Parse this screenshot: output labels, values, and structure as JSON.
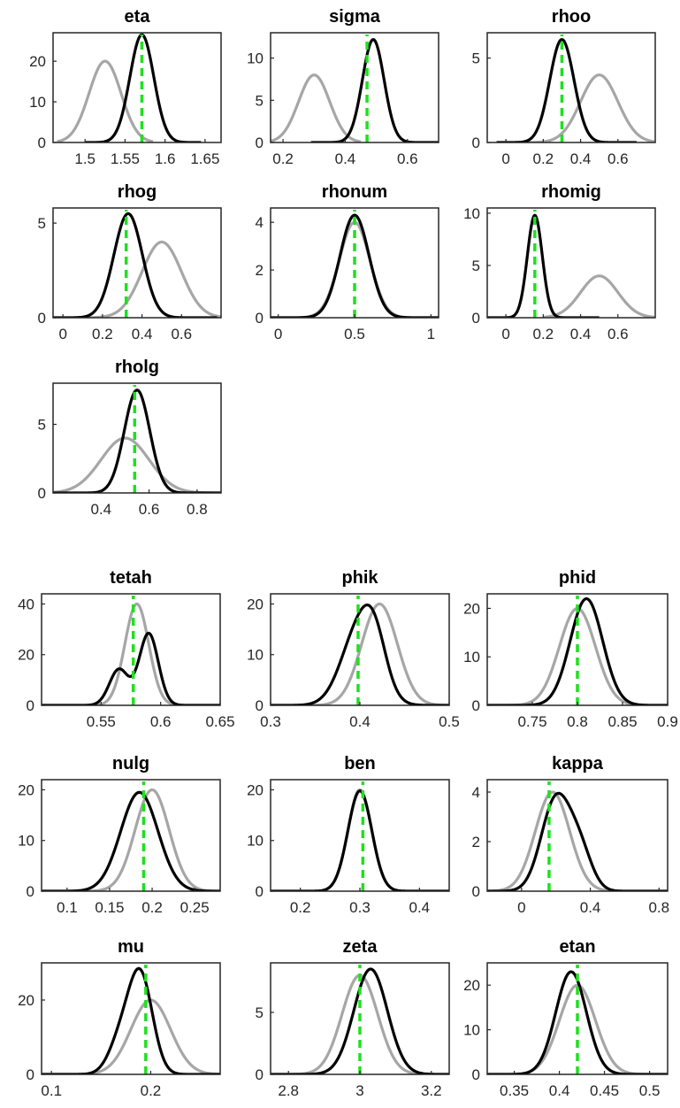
{
  "colors": {
    "prior": "#a6a6a6",
    "posterior": "#000000",
    "mode": "#1fe01f",
    "axes": "#262626"
  },
  "chart_data": [
    {
      "type": "line",
      "title": "eta",
      "xlim": [
        1.46,
        1.67
      ],
      "ylim": [
        0,
        27
      ],
      "xticks": [
        1.5,
        1.55,
        1.6,
        1.65
      ],
      "xticklabels": [
        "1.5",
        "1.55",
        "1.6",
        "1.65"
      ],
      "yticks": [
        0,
        10,
        20
      ],
      "yticklabels": [
        "0",
        "10",
        "20"
      ],
      "mode": 1.571,
      "series": [
        {
          "role": "prior",
          "components": [
            {
              "mu": 1.525,
              "sd": 0.02,
              "w": 1
            }
          ],
          "peak": 20,
          "xrange": [
            1.465,
            1.585
          ]
        },
        {
          "role": "posterior",
          "components": [
            {
              "mu": 1.571,
              "sd": 0.015,
              "w": 1
            }
          ],
          "peak": 26.5,
          "xrange": [
            1.5,
            1.645
          ]
        }
      ]
    },
    {
      "type": "line",
      "title": "sigma",
      "xlim": [
        0.16,
        0.7
      ],
      "ylim": [
        0,
        13
      ],
      "xticks": [
        0.2,
        0.4,
        0.6
      ],
      "xticklabels": [
        "0.2",
        "0.4",
        "0.6"
      ],
      "yticks": [
        0,
        5,
        10
      ],
      "yticklabels": [
        "0",
        "5",
        "10"
      ],
      "mode": 0.47,
      "series": [
        {
          "role": "prior",
          "components": [
            {
              "mu": 0.3,
              "sd": 0.05,
              "w": 1
            }
          ],
          "peak": 8,
          "xrange": [
            0.16,
            0.45
          ]
        },
        {
          "role": "posterior",
          "components": [
            {
              "mu": 0.49,
              "sd": 0.035,
              "w": 1
            }
          ],
          "peak": 12.2,
          "xrange": [
            0.29,
            0.7
          ]
        }
      ]
    },
    {
      "type": "line",
      "title": "rhoo",
      "xlim": [
        -0.1,
        0.8
      ],
      "ylim": [
        0,
        6.5
      ],
      "xticks": [
        0,
        0.2,
        0.4,
        0.6
      ],
      "xticklabels": [
        "0",
        "0.2",
        "0.4",
        "0.6"
      ],
      "yticks": [
        0,
        5
      ],
      "yticklabels": [
        "0",
        "5"
      ],
      "mode": 0.3,
      "series": [
        {
          "role": "prior",
          "components": [
            {
              "mu": 0.5,
              "sd": 0.1,
              "w": 1
            }
          ],
          "peak": 4,
          "xrange": [
            0.1,
            0.8
          ]
        },
        {
          "role": "posterior",
          "components": [
            {
              "mu": 0.3,
              "sd": 0.065,
              "w": 1
            }
          ],
          "peak": 6.1,
          "xrange": [
            -0.05,
            0.7
          ]
        }
      ]
    },
    {
      "type": "line",
      "title": "rhog",
      "xlim": [
        -0.05,
        0.8
      ],
      "ylim": [
        0,
        5.8
      ],
      "xticks": [
        0,
        0.2,
        0.4,
        0.6
      ],
      "xticklabels": [
        "0",
        "0.2",
        "0.4",
        "0.6"
      ],
      "yticks": [
        0,
        5
      ],
      "yticklabels": [
        "0",
        "5"
      ],
      "mode": 0.32,
      "series": [
        {
          "role": "prior",
          "components": [
            {
              "mu": 0.5,
              "sd": 0.1,
              "w": 1
            }
          ],
          "peak": 4,
          "xrange": [
            0.1,
            0.8
          ]
        },
        {
          "role": "posterior",
          "components": [
            {
              "mu": 0.33,
              "sd": 0.072,
              "w": 1
            }
          ],
          "peak": 5.5,
          "xrange": [
            -0.05,
            0.78
          ]
        }
      ]
    },
    {
      "type": "line",
      "title": "rhonum",
      "xlim": [
        -0.05,
        1.05
      ],
      "ylim": [
        0,
        4.6
      ],
      "xticks": [
        0,
        0.5,
        1
      ],
      "xticklabels": [
        "0",
        "0.5",
        "1"
      ],
      "yticks": [
        0,
        2,
        4
      ],
      "yticklabels": [
        "0",
        "2",
        "4"
      ],
      "mode": 0.5,
      "series": [
        {
          "role": "prior",
          "components": [
            {
              "mu": 0.5,
              "sd": 0.1,
              "w": 1
            }
          ],
          "peak": 4,
          "xrange": [
            -0.05,
            1.05
          ]
        },
        {
          "role": "posterior",
          "components": [
            {
              "mu": 0.5,
              "sd": 0.095,
              "w": 1
            }
          ],
          "peak": 4.3,
          "xrange": [
            -0.05,
            1.05
          ]
        }
      ]
    },
    {
      "type": "line",
      "title": "rhomig",
      "xlim": [
        -0.1,
        0.8
      ],
      "ylim": [
        0,
        10.5
      ],
      "xticks": [
        0,
        0.2,
        0.4,
        0.6
      ],
      "xticklabels": [
        "0",
        "0.2",
        "0.4",
        "0.6"
      ],
      "yticks": [
        0,
        5,
        10
      ],
      "yticklabels": [
        "0",
        "5",
        "10"
      ],
      "mode": 0.155,
      "series": [
        {
          "role": "prior",
          "components": [
            {
              "mu": 0.5,
              "sd": 0.1,
              "w": 1
            }
          ],
          "peak": 4,
          "xrange": [
            0.2,
            0.8
          ]
        },
        {
          "role": "posterior",
          "components": [
            {
              "mu": 0.155,
              "sd": 0.04,
              "w": 1
            }
          ],
          "peak": 9.8,
          "xrange": [
            -0.1,
            0.5
          ]
        }
      ]
    },
    {
      "type": "line",
      "title": "rholg",
      "xlim": [
        0.2,
        0.9
      ],
      "ylim": [
        0,
        8
      ],
      "xticks": [
        0.4,
        0.6,
        0.8
      ],
      "xticklabels": [
        "0.4",
        "0.6",
        "0.8"
      ],
      "yticks": [
        0,
        5
      ],
      "yticklabels": [
        "0",
        "5"
      ],
      "mode": 0.54,
      "series": [
        {
          "role": "prior",
          "components": [
            {
              "mu": 0.5,
              "sd": 0.1,
              "w": 1
            }
          ],
          "peak": 4,
          "xrange": [
            0.2,
            0.9
          ]
        },
        {
          "role": "posterior",
          "components": [
            {
              "mu": 0.55,
              "sd": 0.053,
              "w": 1
            }
          ],
          "peak": 7.5,
          "xrange": [
            0.2,
            0.9
          ]
        }
      ]
    },
    {
      "type": "line",
      "title": "tetah",
      "xlim": [
        0.5,
        0.65
      ],
      "ylim": [
        0,
        44
      ],
      "xticks": [
        0.55,
        0.6,
        0.65
      ],
      "xticklabels": [
        "0.55",
        "0.6",
        "0.65"
      ],
      "yticks": [
        0,
        20,
        40
      ],
      "yticklabels": [
        "0",
        "20",
        "40"
      ],
      "mode": 0.577,
      "series": [
        {
          "role": "prior",
          "components": [
            {
              "mu": 0.58,
              "sd": 0.01,
              "w": 1
            }
          ],
          "peak": 40,
          "xrange": [
            0.5,
            0.65
          ]
        },
        {
          "role": "posterior",
          "components": [
            {
              "mu": 0.565,
              "sd": 0.008,
              "w": 0.5
            },
            {
              "mu": 0.59,
              "sd": 0.008,
              "w": 1
            }
          ],
          "peak": 28.5,
          "xrange": [
            0.5,
            0.65
          ]
        }
      ]
    },
    {
      "type": "line",
      "title": "phik",
      "xlim": [
        0.3,
        0.5
      ],
      "ylim": [
        0,
        22
      ],
      "xticks": [
        0.3,
        0.4,
        0.5
      ],
      "xticklabels": [
        "0.3",
        "0.4",
        "0.5"
      ],
      "yticks": [
        0,
        10,
        20
      ],
      "yticklabels": [
        "0",
        "10",
        "20"
      ],
      "mode": 0.398,
      "series": [
        {
          "role": "prior",
          "components": [
            {
              "mu": 0.422,
              "sd": 0.02,
              "w": 1
            }
          ],
          "peak": 20,
          "xrange": [
            0.3,
            0.5
          ]
        },
        {
          "role": "posterior",
          "components": [
            {
              "mu": 0.4,
              "sd": 0.02,
              "w": 1
            },
            {
              "mu": 0.417,
              "sd": 0.013,
              "w": 0.45
            }
          ],
          "peak": 19.8,
          "xrange": [
            0.3,
            0.5
          ]
        }
      ]
    },
    {
      "type": "line",
      "title": "phid",
      "xlim": [
        0.7,
        0.9
      ],
      "ylim": [
        0,
        23
      ],
      "xticks": [
        0.75,
        0.8,
        0.85,
        0.9
      ],
      "xticklabels": [
        "0.75",
        "0.8",
        "0.85",
        "0.9"
      ],
      "yticks": [
        0,
        10,
        20
      ],
      "yticklabels": [
        "0",
        "10",
        "20"
      ],
      "mode": 0.8,
      "series": [
        {
          "role": "prior",
          "components": [
            {
              "mu": 0.8,
              "sd": 0.02,
              "w": 1
            }
          ],
          "peak": 20,
          "xrange": [
            0.7,
            0.9
          ]
        },
        {
          "role": "posterior",
          "components": [
            {
              "mu": 0.81,
              "sd": 0.018,
              "w": 1
            }
          ],
          "peak": 22,
          "xrange": [
            0.7,
            0.9
          ]
        }
      ]
    },
    {
      "type": "line",
      "title": "nulg",
      "xlim": [
        0.07,
        0.28
      ],
      "ylim": [
        0,
        22
      ],
      "xticks": [
        0.1,
        0.15,
        0.2,
        0.25
      ],
      "xticklabels": [
        "0.1",
        "0.15",
        "0.2",
        "0.25"
      ],
      "yticks": [
        0,
        10,
        20
      ],
      "yticklabels": [
        "0",
        "10",
        "20"
      ],
      "mode": 0.19,
      "series": [
        {
          "role": "prior",
          "components": [
            {
              "mu": 0.2,
              "sd": 0.02,
              "w": 1
            }
          ],
          "peak": 20,
          "xrange": [
            0.07,
            0.28
          ]
        },
        {
          "role": "posterior",
          "components": [
            {
              "mu": 0.185,
              "sd": 0.022,
              "w": 1
            }
          ],
          "peak": 19.5,
          "xrange": [
            0.07,
            0.28
          ]
        }
      ]
    },
    {
      "type": "line",
      "title": "ben",
      "xlim": [
        0.15,
        0.45
      ],
      "ylim": [
        0,
        22
      ],
      "xticks": [
        0.2,
        0.3,
        0.4
      ],
      "xticklabels": [
        "0.2",
        "0.3",
        "0.4"
      ],
      "yticks": [
        0,
        10,
        20
      ],
      "yticklabels": [
        "0",
        "10",
        "20"
      ],
      "mode": 0.305,
      "series": [
        {
          "role": "prior",
          "components": [
            {
              "mu": 0.3,
              "sd": 0.02,
              "w": 1
            }
          ],
          "peak": 20,
          "xrange": [
            0.15,
            0.45
          ]
        },
        {
          "role": "posterior",
          "components": [
            {
              "mu": 0.3,
              "sd": 0.02,
              "w": 1
            }
          ],
          "peak": 19.8,
          "xrange": [
            0.15,
            0.45
          ]
        }
      ]
    },
    {
      "type": "line",
      "title": "kappa",
      "xlim": [
        -0.2,
        0.85
      ],
      "ylim": [
        0,
        4.5
      ],
      "xticks": [
        0,
        0.4,
        0.8
      ],
      "xticklabels": [
        "0",
        "0.4",
        "0.8"
      ],
      "yticks": [
        0,
        2,
        4
      ],
      "yticklabels": [
        "0",
        "2",
        "4"
      ],
      "mode": 0.16,
      "series": [
        {
          "role": "prior",
          "components": [
            {
              "mu": 0.18,
              "sd": 0.1,
              "w": 1
            }
          ],
          "peak": 4,
          "xrange": [
            -0.2,
            0.85
          ]
        },
        {
          "role": "posterior",
          "components": [
            {
              "mu": 0.2,
              "sd": 0.085,
              "w": 1
            },
            {
              "mu": 0.34,
              "sd": 0.07,
              "w": 0.4
            }
          ],
          "peak": 3.95,
          "xrange": [
            -0.2,
            0.85
          ]
        }
      ]
    },
    {
      "type": "line",
      "title": "mu",
      "xlim": [
        0.09,
        0.27
      ],
      "ylim": [
        0,
        30
      ],
      "xticks": [
        0.1,
        0.2
      ],
      "xticklabels": [
        "0.1",
        "0.2"
      ],
      "yticks": [
        0,
        20
      ],
      "yticklabels": [
        "0",
        "20"
      ],
      "mode": 0.195,
      "series": [
        {
          "role": "prior",
          "components": [
            {
              "mu": 0.2,
              "sd": 0.02,
              "w": 1
            }
          ],
          "peak": 20,
          "xrange": [
            0.09,
            0.27
          ]
        },
        {
          "role": "posterior",
          "components": [
            {
              "mu": 0.19,
              "sd": 0.012,
              "w": 1
            },
            {
              "mu": 0.17,
              "sd": 0.012,
              "w": 0.35
            }
          ],
          "peak": 28.5,
          "xrange": [
            0.09,
            0.27
          ]
        }
      ]
    },
    {
      "type": "line",
      "title": "zeta",
      "xlim": [
        2.75,
        3.25
      ],
      "ylim": [
        0,
        9
      ],
      "xticks": [
        2.8,
        3,
        3.2
      ],
      "xticklabels": [
        "2.8",
        "3",
        "3.2"
      ],
      "yticks": [
        0,
        5
      ],
      "yticklabels": [
        "0",
        "5"
      ],
      "mode": 3.0,
      "series": [
        {
          "role": "prior",
          "components": [
            {
              "mu": 3.0,
              "sd": 0.05,
              "w": 1
            }
          ],
          "peak": 8,
          "xrange": [
            2.75,
            3.25
          ]
        },
        {
          "role": "posterior",
          "components": [
            {
              "mu": 3.03,
              "sd": 0.047,
              "w": 1
            }
          ],
          "peak": 8.5,
          "xrange": [
            2.75,
            3.25
          ]
        }
      ]
    },
    {
      "type": "line",
      "title": "etan",
      "xlim": [
        0.32,
        0.52
      ],
      "ylim": [
        0,
        25
      ],
      "xticks": [
        0.35,
        0.4,
        0.45,
        0.5
      ],
      "xticklabels": [
        "0.35",
        "0.4",
        "0.45",
        "0.5"
      ],
      "yticks": [
        0,
        10,
        20
      ],
      "yticklabels": [
        "0",
        "10",
        "20"
      ],
      "mode": 0.42,
      "series": [
        {
          "role": "prior",
          "components": [
            {
              "mu": 0.42,
              "sd": 0.02,
              "w": 1
            }
          ],
          "peak": 20,
          "xrange": [
            0.32,
            0.52
          ]
        },
        {
          "role": "posterior",
          "components": [
            {
              "mu": 0.413,
              "sd": 0.017,
              "w": 1
            }
          ],
          "peak": 23,
          "xrange": [
            0.32,
            0.52
          ]
        }
      ]
    }
  ]
}
